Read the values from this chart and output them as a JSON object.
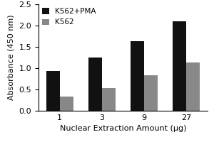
{
  "categories": [
    "1",
    "3",
    "9",
    "27"
  ],
  "series": [
    {
      "label": "K562+PMA",
      "values": [
        0.93,
        1.25,
        1.63,
        2.1
      ],
      "color": "#111111"
    },
    {
      "label": "K562",
      "values": [
        0.34,
        0.54,
        0.83,
        1.13
      ],
      "color": "#888888"
    }
  ],
  "xlabel": "Nuclear Extraction Amount (μg)",
  "ylabel": "Absorbance (450 nm)",
  "ylim": [
    0,
    2.5
  ],
  "yticks": [
    0.0,
    0.5,
    1.0,
    1.5,
    2.0,
    2.5
  ],
  "bar_width": 0.32,
  "legend_loc": "upper left",
  "background_color": "#ffffff",
  "figsize": [
    3.0,
    2.0
  ],
  "dpi": 100
}
